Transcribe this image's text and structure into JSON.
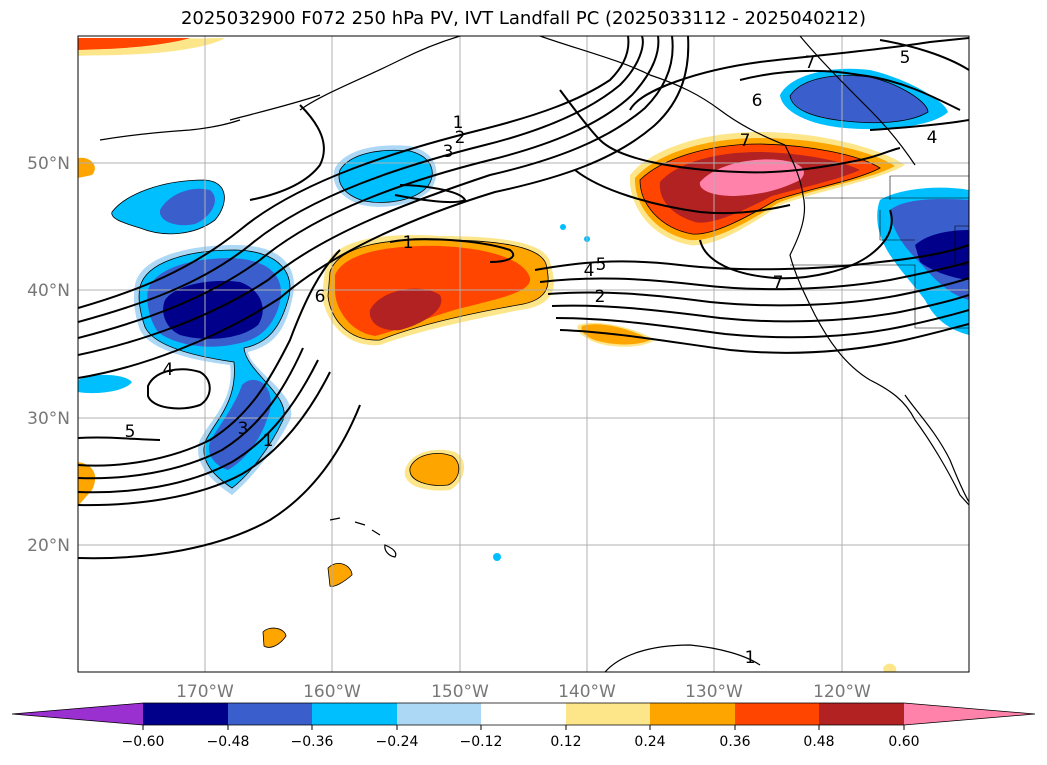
{
  "title": "2025032900 F072 250 hPa PV, IVT Landfall PC (2025033112 - 2025040212)",
  "map": {
    "lat_labels": [
      "50°N",
      "40°N",
      "30°N",
      "20°N"
    ],
    "lon_labels": [
      "170°W",
      "160°W",
      "150°W",
      "140°W",
      "130°W",
      "120°W"
    ],
    "pv_contour_labels": [
      "1",
      "2",
      "3",
      "1",
      "4",
      "5",
      "2",
      "6",
      "7",
      "7",
      "6",
      "7",
      "5",
      "4",
      "4",
      "5",
      "3",
      "1",
      "1"
    ]
  },
  "colorbar": {
    "ticks": [
      "−0.60",
      "−0.48",
      "−0.36",
      "−0.24",
      "−0.12",
      "0.12",
      "0.24",
      "0.36",
      "0.48",
      "0.60"
    ],
    "colors": [
      "#9b30d0",
      "#00008b",
      "#3a5fcd",
      "#00bfff",
      "#add8f5",
      "#ffffff",
      "#fde68a",
      "#ffa500",
      "#ff4500",
      "#b22222",
      "#ff82ab"
    ]
  }
}
